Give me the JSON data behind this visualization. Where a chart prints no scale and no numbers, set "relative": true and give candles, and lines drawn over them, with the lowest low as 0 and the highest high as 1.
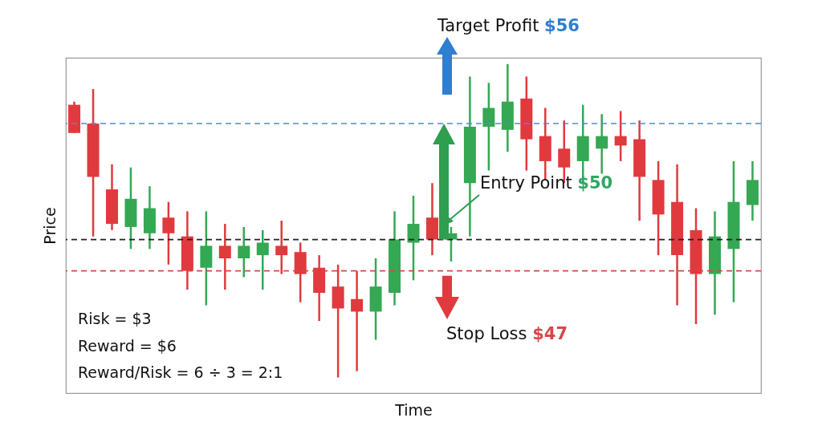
{
  "chart_data": {
    "type": "candlestick",
    "xlabel": "Time",
    "ylabel": "Price",
    "relative": true,
    "tick_labels": false,
    "categories": [
      null,
      null,
      null,
      null,
      null,
      null,
      null,
      null,
      null,
      null,
      null,
      null,
      null,
      null,
      null,
      null,
      null,
      null,
      null,
      null,
      null,
      null,
      null,
      null,
      null,
      null,
      null,
      null,
      null,
      null,
      null,
      null,
      null,
      null,
      null,
      null,
      null
    ],
    "ohlc": [
      [
        0.87,
        0.88,
        0.78,
        0.78
      ],
      [
        0.81,
        0.92,
        0.45,
        0.64
      ],
      [
        0.6,
        0.68,
        0.47,
        0.49
      ],
      [
        0.48,
        0.67,
        0.41,
        0.57
      ],
      [
        0.46,
        0.61,
        0.41,
        0.54
      ],
      [
        0.51,
        0.56,
        0.36,
        0.46
      ],
      [
        0.45,
        0.53,
        0.28,
        0.34
      ],
      [
        0.35,
        0.53,
        0.23,
        0.42
      ],
      [
        0.42,
        0.49,
        0.28,
        0.38
      ],
      [
        0.38,
        0.48,
        0.32,
        0.42
      ],
      [
        0.39,
        0.47,
        0.28,
        0.43
      ],
      [
        0.42,
        0.5,
        0.33,
        0.39
      ],
      [
        0.4,
        0.43,
        0.24,
        0.33
      ],
      [
        0.35,
        0.39,
        0.18,
        0.27
      ],
      [
        0.29,
        0.36,
        0,
        0.22
      ],
      [
        0.25,
        0.34,
        0.02,
        0.21
      ],
      [
        0.21,
        0.38,
        0.12,
        0.29
      ],
      [
        0.27,
        0.53,
        0.23,
        0.44
      ],
      [
        0.43,
        0.58,
        0.31,
        0.49
      ],
      [
        0.51,
        0.62,
        0.39,
        0.44
      ],
      [
        0.44,
        0.48,
        0.37,
        0.46
      ],
      [
        0.62,
        0.96,
        0.45,
        0.8
      ],
      [
        0.8,
        0.94,
        0.66,
        0.86
      ],
      [
        0.79,
        1,
        0.72,
        0.88
      ],
      [
        0.89,
        0.96,
        0.66,
        0.76
      ],
      [
        0.77,
        0.86,
        0.63,
        0.69
      ],
      [
        0.73,
        0.82,
        0.62,
        0.67
      ],
      [
        0.69,
        0.87,
        0.62,
        0.77
      ],
      [
        0.73,
        0.84,
        0.65,
        0.77
      ],
      [
        0.77,
        0.85,
        0.69,
        0.74
      ],
      [
        0.76,
        0.82,
        0.5,
        0.64
      ],
      [
        0.63,
        0.69,
        0.39,
        0.52
      ],
      [
        0.56,
        0.68,
        0.23,
        0.39
      ],
      [
        0.47,
        0.54,
        0.17,
        0.33
      ],
      [
        0.33,
        0.53,
        0.2,
        0.45
      ],
      [
        0.41,
        0.69,
        0.24,
        0.56
      ],
      [
        0.55,
        0.69,
        0.5,
        0.63
      ]
    ],
    "colors": [
      "#e03a3e",
      "#e03a3e",
      "#e03a3e",
      "#34a853",
      "#34a853",
      "#e03a3e",
      "#e03a3e",
      "#34a853",
      "#e03a3e",
      "#34a853",
      "#34a853",
      "#e03a3e",
      "#e03a3e",
      "#e03a3e",
      "#e03a3e",
      "#e03a3e",
      "#34a853",
      "#34a853",
      "#34a853",
      "#e03a3e",
      "#34a853",
      "#34a853",
      "#34a853",
      "#34a853",
      "#e03a3e",
      "#e03a3e",
      "#e03a3e",
      "#34a853",
      "#34a853",
      "#e03a3e",
      "#e03a3e",
      "#e03a3e",
      "#e03a3e",
      "#e03a3e",
      "#34a853",
      "#34a853",
      "#34a853"
    ],
    "ref_lines": [
      {
        "axis": "y",
        "value": 0.81,
        "color": "#4a8fcf",
        "line_style": "dashed"
      },
      {
        "axis": "y",
        "value": 0.44,
        "color": "#222222",
        "line_style": "dashed"
      },
      {
        "axis": "y",
        "value": 0.34,
        "color": "#d9464a",
        "line_style": "dashed"
      }
    ],
    "annotations": [
      "Target Profit $56",
      "Entry Point $50",
      "Stop Loss $47",
      "Risk = $3",
      "Reward = $6",
      "Reward/Risk = 6 ÷ 3 = 2:1"
    ]
  }
}
